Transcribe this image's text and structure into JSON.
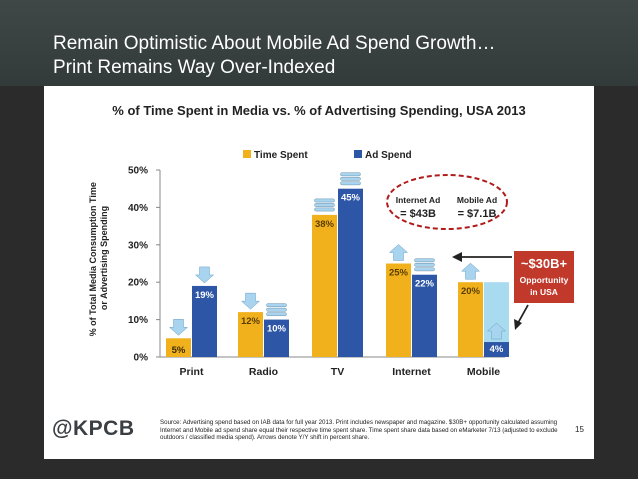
{
  "header": {
    "title_line1": "Remain Optimistic About Mobile Ad Spend Growth…",
    "title_line2": "Print Remains Way Over-Indexed"
  },
  "footer": {
    "brand": "@KPCB",
    "source": "Source: Advertising spend based on IAB data for full year 2013. Print includes newspaper and magazine. $30B+ opportunity calculated assuming Internet and Mobile ad spend share equal their respective time spent share. Time spent share data based on eMarketer 7/13 (adjusted to exclude outdoors / classified media spend). Arrows denote Y/Y shift in percent share.",
    "page_number": "15"
  },
  "callouts": {
    "internet_ad_label": "Internet Ad",
    "internet_ad_value": "= $43B",
    "mobile_ad_label": "Mobile Ad",
    "mobile_ad_value": "= $7.1B",
    "opportunity_value": "~$30B+",
    "opportunity_line1": "Opportunity",
    "opportunity_line2": "in USA"
  },
  "colors": {
    "time_spent": "#f0b11c",
    "ad_spend": "#2d57a6",
    "opportunity_fill": "#a9dbf0",
    "arrow": "#a8d4ef",
    "callout_box": "#c0392b",
    "ellipse": "#b01c1c"
  },
  "chart_data": {
    "type": "bar",
    "title": "% of Time Spent in Media vs. % of Advertising Spending, USA 2013",
    "ylabel": "% of Total Media Consumption Time or Advertising Spending",
    "xlabel": "",
    "categories": [
      "Print",
      "Radio",
      "TV",
      "Internet",
      "Mobile"
    ],
    "series": [
      {
        "name": "Time Spent",
        "values": [
          5,
          12,
          38,
          25,
          20
        ],
        "labels": [
          "5%",
          "12%",
          "38%",
          "25%",
          "20%"
        ]
      },
      {
        "name": "Ad Spend",
        "values": [
          19,
          10,
          45,
          22,
          4
        ],
        "labels": [
          "19%",
          "10%",
          "45%",
          "22%",
          "4%"
        ]
      }
    ],
    "ylim": [
      0,
      50
    ],
    "yticks": [
      0,
      10,
      20,
      30,
      40,
      50
    ],
    "ytick_labels": [
      "0%",
      "10%",
      "20%",
      "30%",
      "40%",
      "50%"
    ],
    "legend_position": "top",
    "grid": false,
    "yoy_shift_arrows": {
      "time_spent": [
        "down",
        "down",
        "flat",
        "up",
        "up"
      ],
      "ad_spend": [
        "down",
        "flat",
        "flat",
        "flat",
        "up"
      ]
    }
  }
}
